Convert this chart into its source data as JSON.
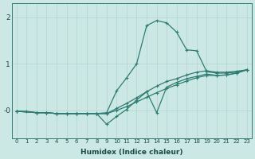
{
  "xlabel": "Humidex (Indice chaleur)",
  "bg_color": "#cce8e5",
  "line_color": "#2e7d72",
  "grid_color": "#afd4d0",
  "xlim": [
    -0.5,
    23.5
  ],
  "ylim": [
    -0.6,
    2.3
  ],
  "xticks": [
    0,
    1,
    2,
    3,
    4,
    5,
    6,
    7,
    8,
    9,
    10,
    11,
    12,
    13,
    14,
    15,
    16,
    17,
    18,
    19,
    20,
    21,
    22,
    23
  ],
  "yticks": [
    0,
    1,
    2
  ],
  "ytick_labels": [
    "-0",
    "1",
    "2"
  ],
  "series1_x": [
    0,
    1,
    2,
    3,
    4,
    5,
    6,
    7,
    8,
    9,
    10,
    11,
    12,
    13,
    14,
    15,
    16,
    17,
    18,
    19,
    20,
    21,
    22,
    23
  ],
  "series1_y": [
    -0.02,
    -0.02,
    -0.05,
    -0.05,
    -0.07,
    -0.07,
    -0.07,
    -0.07,
    -0.07,
    -0.05,
    0.42,
    0.7,
    1.0,
    1.82,
    1.93,
    1.88,
    1.68,
    1.3,
    1.28,
    0.83,
    0.8,
    0.8,
    0.82,
    0.87
  ],
  "series2_x": [
    0,
    2,
    3,
    4,
    5,
    6,
    7,
    8,
    9,
    10,
    11,
    12,
    13,
    14,
    15,
    16,
    17,
    18,
    19,
    20,
    21,
    22,
    23
  ],
  "series2_y": [
    -0.02,
    -0.05,
    -0.05,
    -0.07,
    -0.07,
    -0.07,
    -0.07,
    -0.07,
    -0.07,
    0.04,
    0.15,
    0.27,
    0.4,
    0.52,
    0.62,
    0.68,
    0.76,
    0.82,
    0.85,
    0.82,
    0.82,
    0.84,
    0.87
  ],
  "series3_x": [
    0,
    2,
    3,
    4,
    5,
    6,
    7,
    8,
    9,
    10,
    11,
    12,
    13,
    14,
    15,
    16,
    17,
    18,
    19,
    20,
    21,
    22,
    23
  ],
  "series3_y": [
    -0.02,
    -0.05,
    -0.05,
    -0.07,
    -0.07,
    -0.07,
    -0.07,
    -0.07,
    -0.07,
    0.0,
    0.08,
    0.18,
    0.28,
    0.38,
    0.47,
    0.55,
    0.63,
    0.7,
    0.75,
    0.75,
    0.76,
    0.8,
    0.87
  ],
  "series4_x": [
    0,
    2,
    3,
    4,
    5,
    6,
    7,
    8,
    9,
    10,
    11,
    12,
    13,
    14,
    15,
    16,
    17,
    18,
    19,
    20,
    21,
    22,
    23
  ],
  "series4_y": [
    -0.02,
    -0.05,
    -0.05,
    -0.07,
    -0.07,
    -0.07,
    -0.07,
    -0.07,
    -0.3,
    -0.13,
    0.02,
    0.22,
    0.4,
    -0.05,
    0.5,
    0.6,
    0.68,
    0.73,
    0.78,
    0.75,
    0.76,
    0.8,
    0.87
  ]
}
